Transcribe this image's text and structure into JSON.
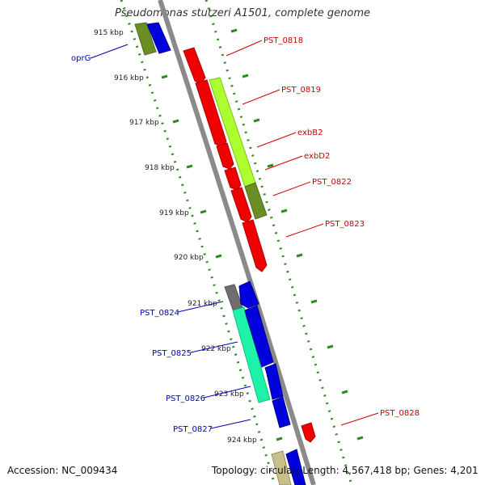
{
  "title": "Pseudomonas stutzeri A1501, complete genome",
  "footer": {
    "accession_label": "Accession: NC_009434",
    "summary_label": "Topology: circular; Length: 4,567,418 bp; Genes: 4,201"
  },
  "colors": {
    "backbone": "#8a8a8a",
    "tick": "#2e8b1f",
    "label_red": "#cc0000",
    "label_blue": "#0000bb",
    "axis_text": "#222222"
  },
  "ticks": [
    {
      "label": "915 kbp"
    },
    {
      "label": "916 kbp"
    },
    {
      "label": "917 kbp"
    },
    {
      "label": "918 kbp"
    },
    {
      "label": "919 kbp"
    },
    {
      "label": "920 kbp"
    },
    {
      "label": "921 kbp"
    },
    {
      "label": "922 kbp"
    },
    {
      "label": "923 kbp"
    },
    {
      "label": "924 kbp"
    }
  ],
  "genes": [
    {
      "name": "oprG",
      "strand": "reverse",
      "label_color": "blue"
    },
    {
      "name": "PST_0818",
      "strand": "forward",
      "label_color": "red"
    },
    {
      "name": "PST_0819",
      "strand": "forward",
      "label_color": "red"
    },
    {
      "name": "exbB2",
      "strand": "forward",
      "label_color": "red"
    },
    {
      "name": "exbD2",
      "strand": "forward",
      "label_color": "red"
    },
    {
      "name": "PST_0822",
      "strand": "forward",
      "label_color": "red"
    },
    {
      "name": "PST_0823",
      "strand": "forward",
      "label_color": "red"
    },
    {
      "name": "PST_0824",
      "strand": "reverse",
      "label_color": "blue"
    },
    {
      "name": "PST_0825",
      "strand": "reverse",
      "label_color": "blue"
    },
    {
      "name": "PST_0826",
      "strand": "reverse",
      "label_color": "blue"
    },
    {
      "name": "PST_0827",
      "strand": "reverse",
      "label_color": "blue"
    },
    {
      "name": "PST_0828",
      "strand": "forward",
      "label_color": "red"
    }
  ]
}
